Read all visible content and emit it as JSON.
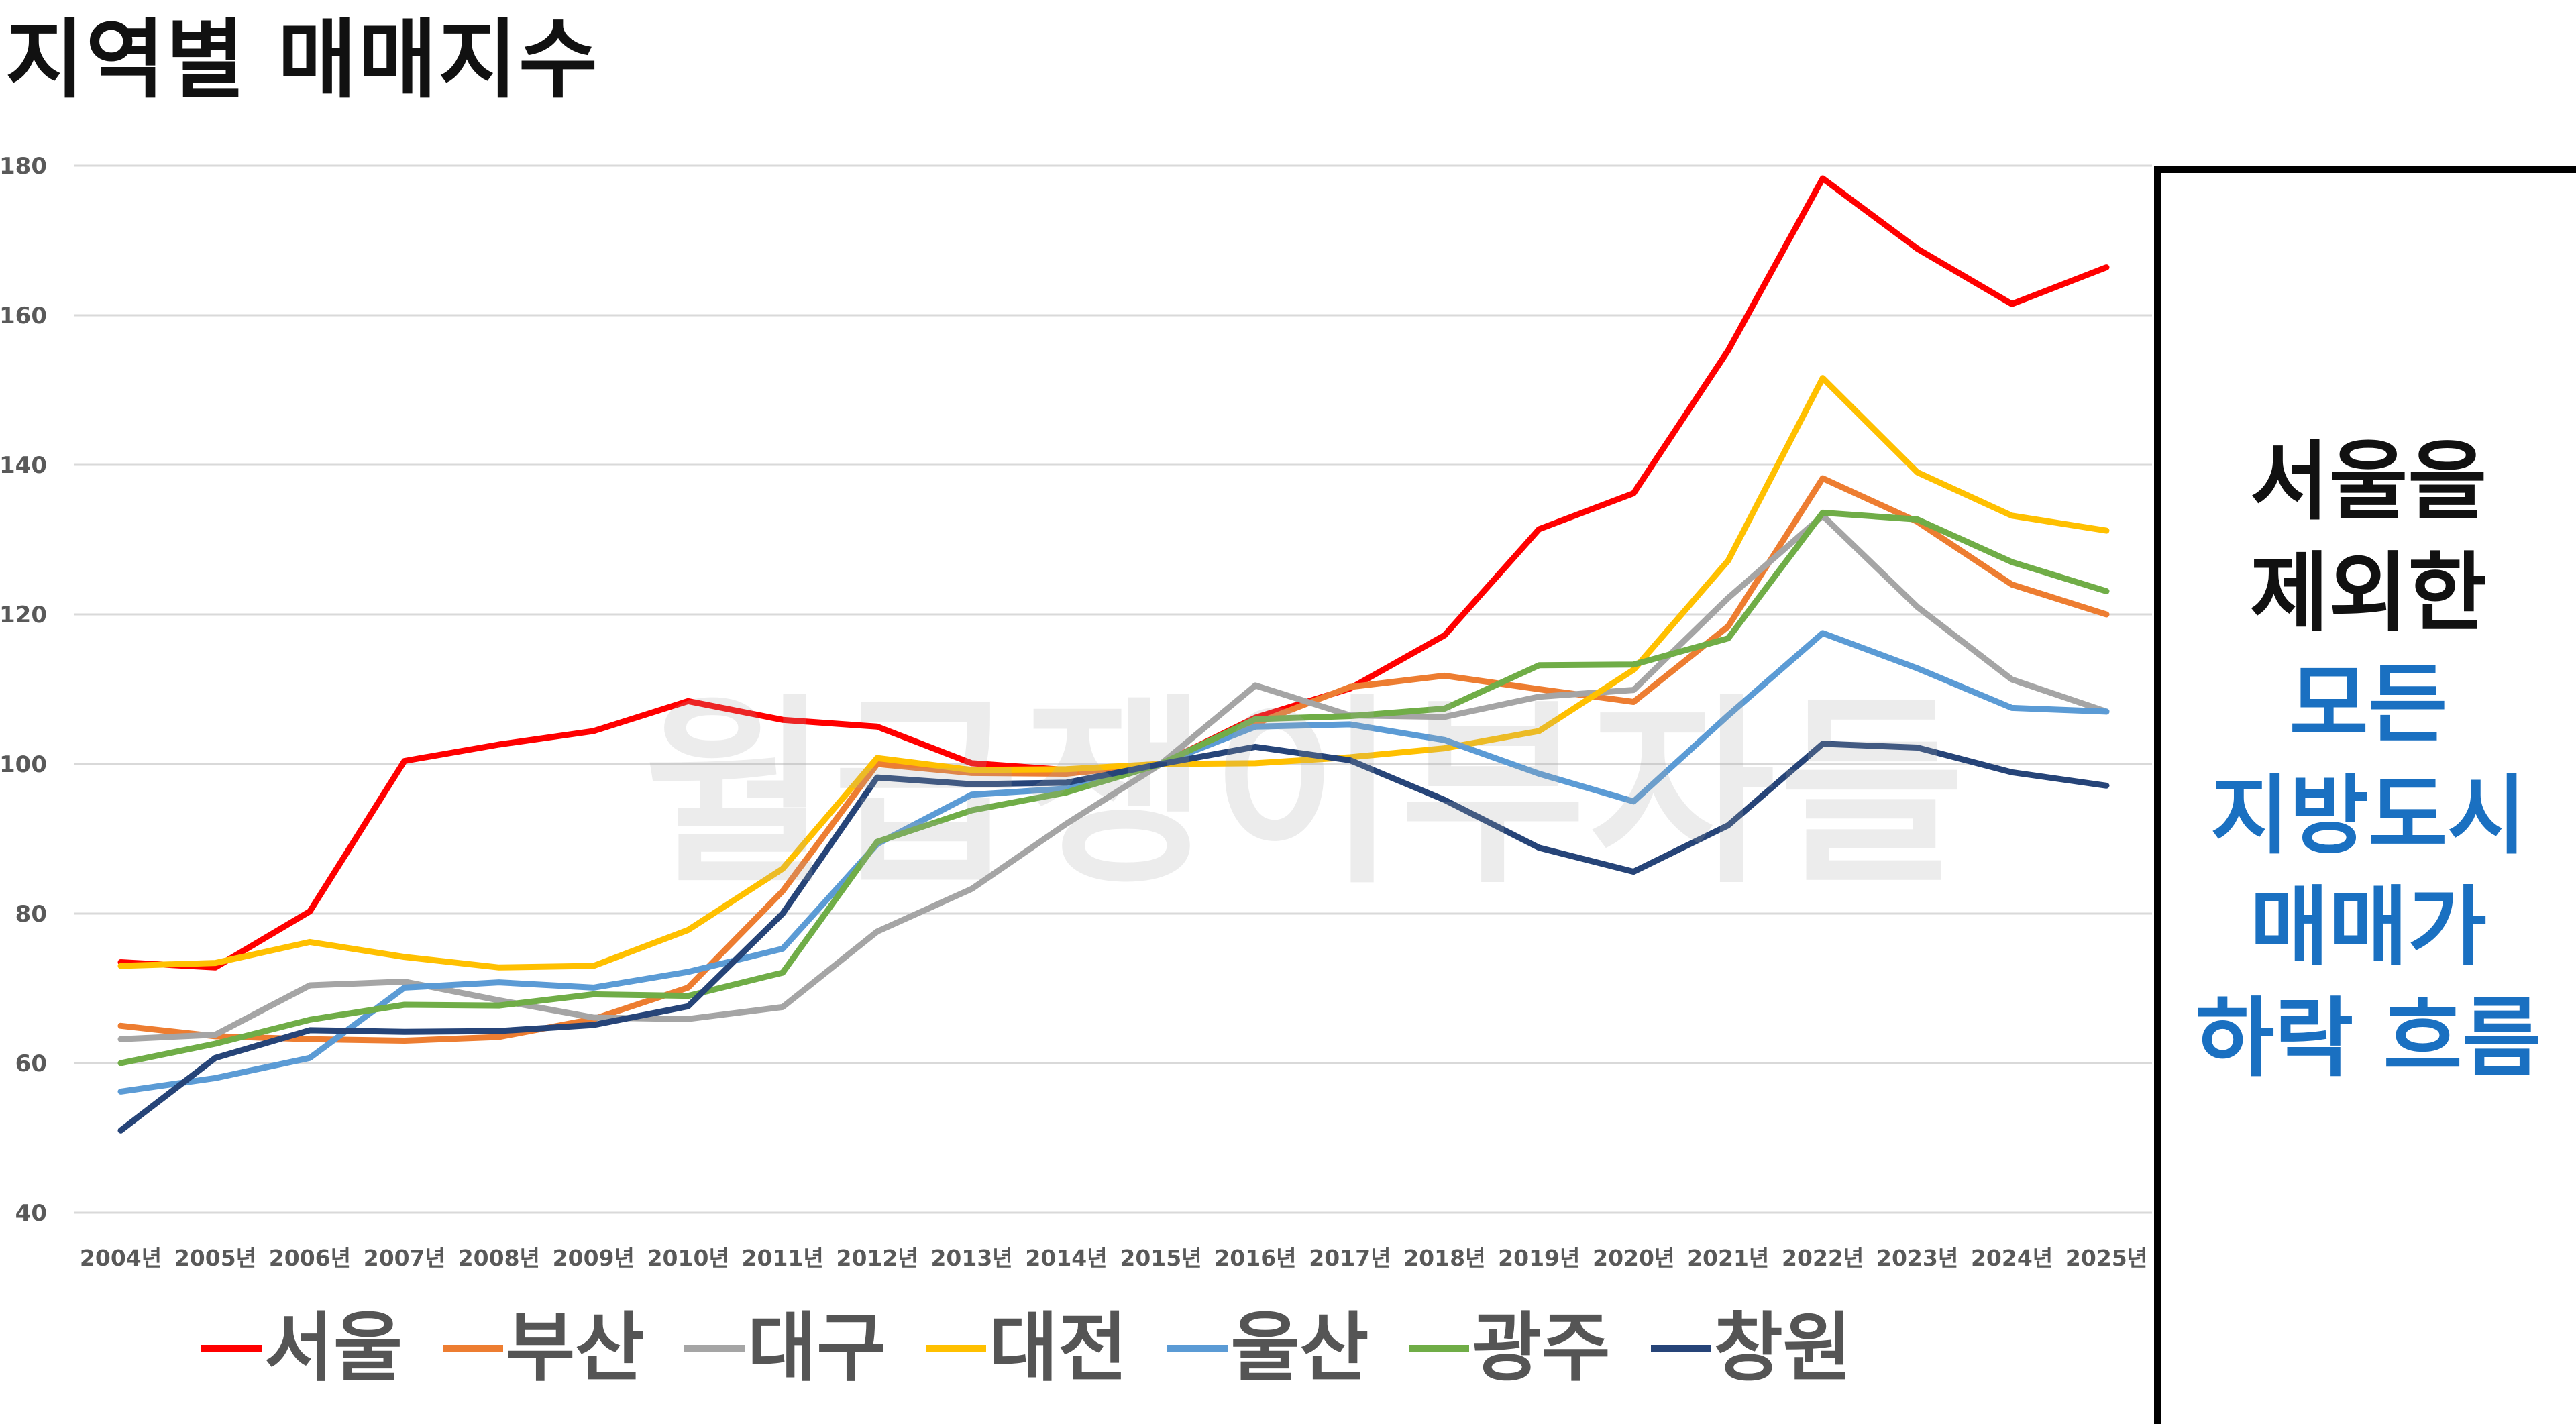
{
  "page": {
    "title": "지역별 매매지수",
    "watermark": "월급쟁이부자들"
  },
  "note": {
    "lines_dark": [
      "서울을",
      "제외한"
    ],
    "lines_blue": [
      "모든",
      "지방도시",
      "매매가",
      "하락 흐름"
    ],
    "color_dark": "#111111",
    "color_blue": "#1a70c1"
  },
  "chart_data": {
    "type": "line",
    "title": "",
    "xlabel": "",
    "ylabel": "",
    "categories": [
      "2004년",
      "2005년",
      "2006년",
      "2007년",
      "2008년",
      "2009년",
      "2010년",
      "2011년",
      "2012년",
      "2013년",
      "2014년",
      "2015년",
      "2016년",
      "2017년",
      "2018년",
      "2019년",
      "2020년",
      "2021년",
      "2022년",
      "2023년",
      "2024년",
      "2025년"
    ],
    "ylim": [
      40,
      180
    ],
    "yticks": [
      40,
      60,
      80,
      100,
      120,
      140,
      160,
      180
    ],
    "grid": true,
    "legend_position": "bottom",
    "series": [
      {
        "name": "서울",
        "color": "#ff0000",
        "values": [
          73.5,
          72.8,
          80.3,
          100.4,
          102.6,
          104.4,
          108.4,
          105.9,
          105.0,
          100.1,
          99.2,
          100.0,
          106.2,
          110.1,
          117.2,
          131.4,
          136.2,
          155.3,
          178.3,
          168.9,
          161.5,
          166.4
        ]
      },
      {
        "name": "부산",
        "color": "#ed7d31",
        "values": [
          65.0,
          63.6,
          63.2,
          63.0,
          63.5,
          65.9,
          70.1,
          83.0,
          100.0,
          98.8,
          98.7,
          100.0,
          105.4,
          110.3,
          111.8,
          110.0,
          108.3,
          118.4,
          138.2,
          132.4,
          124.0,
          120.0
        ]
      },
      {
        "name": "대구",
        "color": "#a5a5a5",
        "values": [
          63.2,
          63.8,
          70.4,
          70.9,
          68.4,
          66.1,
          65.9,
          67.5,
          77.6,
          83.3,
          92.0,
          100.0,
          110.5,
          106.5,
          106.3,
          109.0,
          109.9,
          122.2,
          133.2,
          121.0,
          111.3,
          107.0
        ]
      },
      {
        "name": "대전",
        "color": "#ffc000",
        "values": [
          73.0,
          73.4,
          76.2,
          74.2,
          72.8,
          73.0,
          77.8,
          86.0,
          100.8,
          99.2,
          99.3,
          100.0,
          100.1,
          100.9,
          102.1,
          104.4,
          112.6,
          127.2,
          151.6,
          139.0,
          133.2,
          131.2
        ]
      },
      {
        "name": "울산",
        "color": "#5b9bd5",
        "values": [
          56.2,
          58.0,
          60.7,
          70.1,
          70.8,
          70.1,
          72.2,
          75.3,
          89.3,
          95.9,
          96.7,
          100.0,
          105.0,
          105.3,
          103.2,
          98.7,
          95.0,
          106.5,
          117.5,
          112.8,
          107.5,
          107.0
        ]
      },
      {
        "name": "광주",
        "color": "#70ad47",
        "values": [
          60.0,
          62.6,
          65.8,
          67.8,
          67.7,
          69.2,
          69.0,
          72.1,
          89.6,
          93.8,
          96.2,
          100.0,
          106.0,
          106.4,
          107.4,
          113.2,
          113.3,
          116.8,
          133.6,
          132.7,
          127.0,
          123.1
        ]
      },
      {
        "name": "창원",
        "color": "#264478",
        "values": [
          51.0,
          60.7,
          64.4,
          64.2,
          64.3,
          65.1,
          67.6,
          80.0,
          98.2,
          97.3,
          97.5,
          100.0,
          102.3,
          100.5,
          95.2,
          88.8,
          85.6,
          91.8,
          102.7,
          102.2,
          98.9,
          97.1
        ]
      }
    ]
  }
}
